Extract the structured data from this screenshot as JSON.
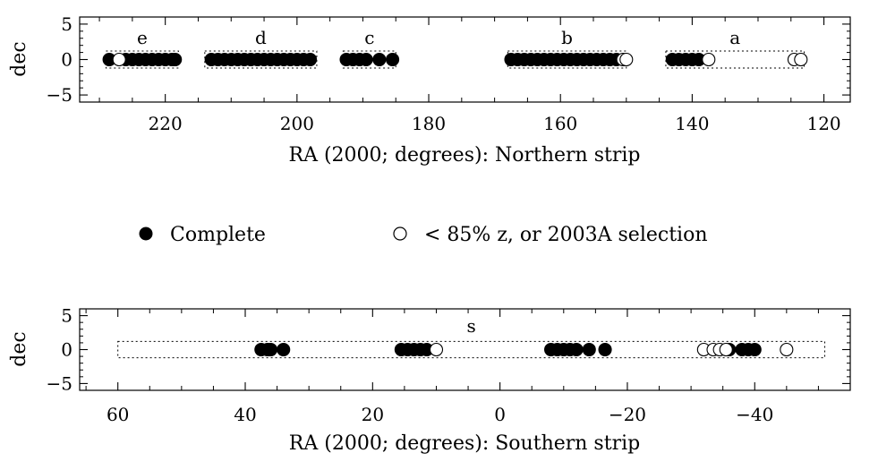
{
  "legend": {
    "complete_label": "Complete",
    "partial_label": "< 85% z, or 2003A selection"
  },
  "chart_data": [
    {
      "type": "scatter",
      "name": "northern",
      "xlabel": "RA (2000; degrees): Northern strip",
      "ylabel": "dec",
      "xlim": [
        233,
        116
      ],
      "ylim": [
        -6,
        6
      ],
      "xticks": [
        220,
        200,
        180,
        160,
        140,
        120
      ],
      "yticks": [
        5,
        0,
        -5
      ],
      "fields": [
        {
          "label": "e",
          "ra_min": 218,
          "ra_max": 229
        },
        {
          "label": "d",
          "ra_min": 197,
          "ra_max": 214
        },
        {
          "label": "c",
          "ra_min": 185,
          "ra_max": 193
        },
        {
          "label": "b",
          "ra_min": 150,
          "ra_max": 168
        },
        {
          "label": "a",
          "ra_min": 123,
          "ra_max": 144
        }
      ],
      "series": [
        {
          "name": "Complete",
          "filled": true,
          "x": [
            228.5,
            226,
            225,
            224,
            223,
            222,
            221,
            220,
            219,
            218.5,
            213,
            212,
            211,
            210,
            209,
            208,
            207,
            206,
            205,
            204,
            203,
            202,
            201,
            200,
            199,
            198,
            192.5,
            191.5,
            190.5,
            189.5,
            187.5,
            185.5,
            167.5,
            166.5,
            165.5,
            164.5,
            163.5,
            162.5,
            161.5,
            160.5,
            159.5,
            158.5,
            157.5,
            156.5,
            155.5,
            154.5,
            153.5,
            152.5,
            151.5,
            143,
            142,
            141,
            140,
            139
          ],
          "y": [
            0,
            0,
            0,
            0,
            0,
            0,
            0,
            0,
            0,
            0,
            0,
            0,
            0,
            0,
            0,
            0,
            0,
            0,
            0,
            0,
            0,
            0,
            0,
            0,
            0,
            0,
            0,
            0,
            0,
            0,
            0,
            0,
            0,
            0,
            0,
            0,
            0,
            0,
            0,
            0,
            0,
            0,
            0,
            0,
            0,
            0,
            0,
            0,
            0,
            0,
            0,
            0,
            0,
            0
          ]
        },
        {
          "name": "< 85% z, or 2003A selection",
          "filled": false,
          "x": [
            227,
            150.5,
            150,
            137.5,
            124.5,
            123.5
          ],
          "y": [
            0,
            0,
            0,
            0,
            0,
            0
          ]
        }
      ]
    },
    {
      "type": "scatter",
      "name": "southern",
      "xlabel": "RA (2000; degrees): Southern strip",
      "ylabel": "dec",
      "xlim": [
        66,
        -55
      ],
      "ylim": [
        -6,
        6
      ],
      "xticks": [
        60,
        40,
        20,
        0,
        -20,
        -40
      ],
      "yticks": [
        5,
        0,
        -5
      ],
      "fields": [
        {
          "label": "s",
          "ra_min": -51,
          "ra_max": 60
        }
      ],
      "series": [
        {
          "name": "Complete",
          "filled": true,
          "x": [
            37.5,
            36.5,
            36,
            34,
            15.5,
            14.5,
            13.5,
            12.5,
            11.5,
            -8,
            -9,
            -10,
            -11,
            -12,
            -14,
            -16.5,
            -36,
            -38,
            -39,
            -40
          ],
          "y": [
            0,
            0,
            0,
            0,
            0,
            0,
            0,
            0,
            0,
            0,
            0,
            0,
            0,
            0,
            0,
            0,
            0,
            0,
            0,
            0
          ]
        },
        {
          "name": "< 85% z, or 2003A selection",
          "filled": false,
          "x": [
            10,
            -32,
            -33.5,
            -34.5,
            -35.5,
            -45
          ],
          "y": [
            0,
            0,
            0,
            0,
            0,
            0
          ]
        }
      ]
    }
  ]
}
